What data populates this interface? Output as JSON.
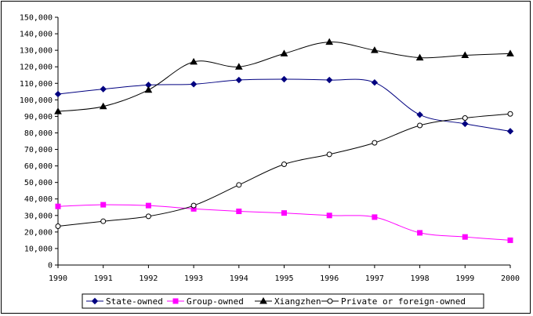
{
  "chart_data": {
    "type": "line",
    "title": "",
    "xlabel": "",
    "ylabel": "",
    "x": [
      1990,
      1991,
      1992,
      1993,
      1994,
      1995,
      1996,
      1997,
      1998,
      1999,
      2000
    ],
    "x_tick_labels": [
      "1990",
      "1991",
      "1992",
      "1993",
      "1994",
      "1995",
      "1996",
      "1997",
      "1998",
      "1999",
      "2000"
    ],
    "ylim": [
      0,
      150000
    ],
    "y_ticks": [
      0,
      10000,
      20000,
      30000,
      40000,
      50000,
      60000,
      70000,
      80000,
      90000,
      100000,
      110000,
      120000,
      130000,
      140000,
      150000
    ],
    "y_tick_labels": [
      "0",
      "10,000",
      "20,000",
      "30,000",
      "40,000",
      "50,000",
      "60,000",
      "70,000",
      "80,000",
      "90,000",
      "100,000",
      "110,000",
      "120,000",
      "130,000",
      "140,000",
      "150,000"
    ],
    "grid": false,
    "legend_position": "bottom",
    "series": [
      {
        "name": "State-owned",
        "color": "#000080",
        "marker": "diamond",
        "values": [
          103500,
          106500,
          109000,
          109500,
          112000,
          112500,
          112000,
          110500,
          91000,
          85500,
          81000
        ]
      },
      {
        "name": "Group-owned",
        "color": "#ff00ff",
        "marker": "square",
        "values": [
          35500,
          36500,
          36000,
          34000,
          32500,
          31500,
          30000,
          29000,
          19500,
          17000,
          15000
        ]
      },
      {
        "name": "Xiangzhen",
        "color": "#000000",
        "marker": "triangle",
        "values": [
          93000,
          96000,
          106000,
          123000,
          120000,
          128000,
          135000,
          130000,
          125500,
          127000,
          128000
        ]
      },
      {
        "name": "Private or foreign-owned",
        "color": "#000000",
        "marker": "circle",
        "values": [
          23500,
          26500,
          29500,
          36000,
          48500,
          61000,
          67000,
          74000,
          84500,
          89000,
          91500
        ]
      }
    ]
  }
}
